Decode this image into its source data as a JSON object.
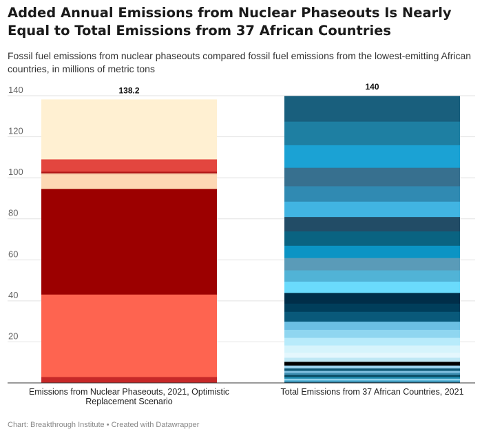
{
  "title": "Added Annual Emissions from Nuclear Phaseouts Is Nearly Equal to Total Emissions from 37 African Countries",
  "subtitle": "Fossil fuel emissions from nuclear phaseouts compared fossil fuel emissions from the lowest-emitting African countries, in millions of metric tons",
  "footer": "Chart: Breakthrough Institute • Created with Datawrapper",
  "chart_data": {
    "type": "bar",
    "stacked": true,
    "ylim": [
      0,
      140
    ],
    "yticks": [
      20,
      40,
      60,
      80,
      100,
      120,
      140
    ],
    "grid": true,
    "legend": "none",
    "categories": [
      "Emissions from Nuclear Phaseouts, 2021, Optimistic Replacement Scenario",
      "Total Emissions from 37 African Countries, 2021"
    ],
    "totals_labels": [
      "138.2",
      "140"
    ],
    "stacks": [
      {
        "category": "Emissions from Nuclear Phaseouts, 2021, Optimistic Replacement Scenario",
        "total": 138.2,
        "segments": [
          {
            "value": 3.0,
            "color": "#c62828"
          },
          {
            "value": 40.2,
            "color": "#fe6450"
          },
          {
            "value": 51.5,
            "color": "#9c0000"
          },
          {
            "value": 7.0,
            "color": "#fdd8b4"
          },
          {
            "value": 0.6,
            "color": "#f1c6a6"
          },
          {
            "value": 0.8,
            "color": "#b01616"
          },
          {
            "value": 6.0,
            "color": "#e3463f"
          },
          {
            "value": 29.1,
            "color": "#fff0d2"
          }
        ]
      },
      {
        "category": "Total Emissions from 37 African Countries, 2021",
        "total": 140,
        "segments": [
          {
            "value": 0.7,
            "color": "#175e7c"
          },
          {
            "value": 0.7,
            "color": "#53b1d5"
          },
          {
            "value": 0.8,
            "color": "#8fd2ec"
          },
          {
            "value": 0.9,
            "color": "#1f89ad"
          },
          {
            "value": 0.9,
            "color": "#07485f"
          },
          {
            "value": 1.0,
            "color": "#3d8eb2"
          },
          {
            "value": 1.0,
            "color": "#80c0e0"
          },
          {
            "value": 1.2,
            "color": "#0c5774"
          },
          {
            "value": 1.4,
            "color": "#9bd4f0"
          },
          {
            "value": 1.8,
            "color": "#000000"
          },
          {
            "value": 2.0,
            "color": "#bfe8f5"
          },
          {
            "value": 2.4,
            "color": "#e4f7fd"
          },
          {
            "value": 3.6,
            "color": "#d6f4fc"
          },
          {
            "value": 3.7,
            "color": "#b8ebfb"
          },
          {
            "value": 3.9,
            "color": "#8fd6f0"
          },
          {
            "value": 4.0,
            "color": "#6bbfe3"
          },
          {
            "value": 4.8,
            "color": "#09597a"
          },
          {
            "value": 4.0,
            "color": "#003e5b"
          },
          {
            "value": 5.2,
            "color": "#002e49"
          },
          {
            "value": 5.5,
            "color": "#6adbfc"
          },
          {
            "value": 5.5,
            "color": "#51b3d6"
          },
          {
            "value": 6.0,
            "color": "#5a9bb8"
          },
          {
            "value": 6.0,
            "color": "#0b94c4"
          },
          {
            "value": 7.0,
            "color": "#0a6381"
          },
          {
            "value": 7.0,
            "color": "#224c66"
          },
          {
            "value": 7.5,
            "color": "#41b4e2"
          },
          {
            "value": 7.5,
            "color": "#308ab2"
          },
          {
            "value": 9.0,
            "color": "#37708f"
          },
          {
            "value": 11.0,
            "color": "#1ba2d4"
          },
          {
            "value": 11.5,
            "color": "#1e7fa2"
          },
          {
            "value": 12.4,
            "color": "#195f7d"
          }
        ]
      }
    ]
  }
}
